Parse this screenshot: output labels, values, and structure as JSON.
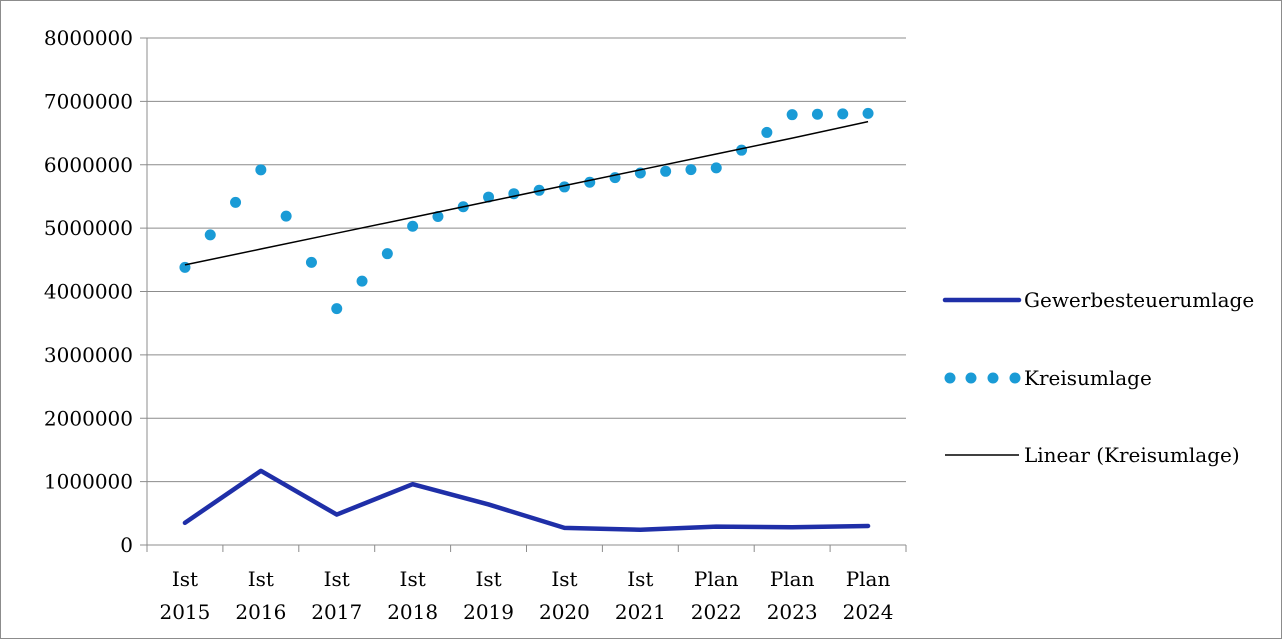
{
  "chart_data": {
    "type": "line",
    "categories": [
      [
        "Ist",
        "2015"
      ],
      [
        "Ist",
        "2016"
      ],
      [
        "Ist",
        "2017"
      ],
      [
        "Ist",
        "2018"
      ],
      [
        "Ist",
        "2019"
      ],
      [
        "Ist",
        "2020"
      ],
      [
        "Ist",
        "2021"
      ],
      [
        "Plan",
        "2022"
      ],
      [
        "Plan",
        "2023"
      ],
      [
        "Plan",
        "2024"
      ]
    ],
    "ylim": [
      0,
      8000000
    ],
    "y_ticks": [
      "0",
      "1000000",
      "2000000",
      "3000000",
      "4000000",
      "5000000",
      "6000000",
      "7000000",
      "8000000"
    ],
    "grid": "horizontal",
    "legend_position": "right",
    "series": [
      {
        "name": "Gewerbesteuerumlage",
        "style": "solid-thick",
        "color": "#1f2fa8",
        "values": [
          350000,
          1170000,
          480000,
          960000,
          640000,
          270000,
          240000,
          290000,
          280000,
          300000
        ]
      },
      {
        "name": "Kreisumlage",
        "style": "round-dots",
        "color": "#1a9bd6",
        "values": [
          4380000,
          5920000,
          3730000,
          5030000,
          5490000,
          5650000,
          5870000,
          5950000,
          6790000,
          6810000
        ]
      },
      {
        "name": "Linear (Kreisumlage)",
        "style": "trendline",
        "color": "#000000",
        "values": [
          4420000,
          4670000,
          4920000,
          5170000,
          5420000,
          5670000,
          5920000,
          6170000,
          6420000,
          6680000
        ]
      }
    ]
  }
}
